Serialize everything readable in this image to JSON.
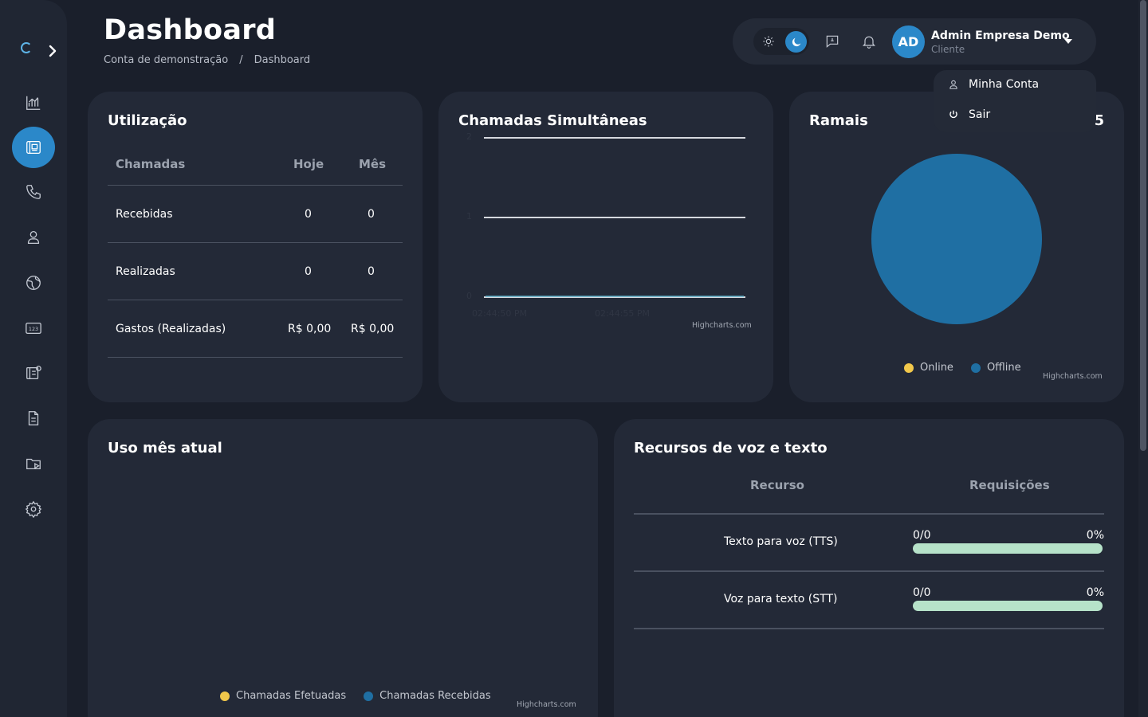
{
  "header": {
    "title": "Dashboard",
    "breadcrumb": [
      "Conta de demonstração",
      "/",
      "Dashboard"
    ]
  },
  "user": {
    "initials": "AD",
    "name": "Admin Empresa Demo",
    "role": "Cliente"
  },
  "user_menu": {
    "items": [
      {
        "label": "Minha Conta",
        "icon": "user-icon"
      },
      {
        "label": "Sair",
        "icon": "power-icon"
      }
    ]
  },
  "sidebar": {
    "items": [
      {
        "name": "chart",
        "icon": "bar-chart-icon",
        "active": false
      },
      {
        "name": "dashboard",
        "icon": "dashboard-icon",
        "active": true
      },
      {
        "name": "calls",
        "icon": "phone-icon",
        "active": false
      },
      {
        "name": "users",
        "icon": "user-icon",
        "active": false
      },
      {
        "name": "network",
        "icon": "globe-icon",
        "active": false
      },
      {
        "name": "numbers",
        "icon": "numbers-icon",
        "active": false
      },
      {
        "name": "extensions",
        "icon": "extensions-icon",
        "active": false
      },
      {
        "name": "reports",
        "icon": "document-icon",
        "active": false
      },
      {
        "name": "recordings",
        "icon": "folder-play-icon",
        "active": false
      },
      {
        "name": "settings",
        "icon": "gear-icon",
        "active": false
      }
    ]
  },
  "utilizacao": {
    "title": "Utilização",
    "headers": [
      "Chamadas",
      "Hoje",
      "Mês"
    ],
    "rows": [
      {
        "label": "Recebidas",
        "hoje": "0",
        "mes": "0"
      },
      {
        "label": "Realizadas",
        "hoje": "0",
        "mes": "0"
      },
      {
        "label": "Gastos (Realizadas)",
        "hoje": "R$ 0,00",
        "mes": "R$ 0,00"
      }
    ]
  },
  "chamadas": {
    "title": "Chamadas Simultâneas",
    "credits": "Highcharts.com"
  },
  "ramais": {
    "title": "Ramais",
    "count": "5",
    "credits": "Highcharts.com"
  },
  "uso": {
    "title": "Uso mês atual",
    "credits": "Highcharts.com"
  },
  "recursos": {
    "title": "Recursos de voz e texto",
    "headers": [
      "Recurso",
      "Requisições"
    ],
    "rows": [
      {
        "name": "Texto para voz (TTS)",
        "count": "0/0",
        "pct": "0%"
      },
      {
        "name": "Voz para texto (STT)",
        "count": "0/0",
        "pct": "0%"
      }
    ]
  },
  "colors": {
    "accent": "#2b88c9",
    "online": "#f2c84b",
    "offline": "#1f6fa3",
    "progress": "#b6e2c9"
  },
  "chart_data": [
    {
      "type": "line",
      "x": [
        "02:44:50 PM",
        "02:44:55 PM"
      ],
      "y_ticks": [
        "0",
        "1",
        "2"
      ],
      "ylim": [
        0,
        2
      ],
      "series": [
        {
          "values": [
            0,
            0
          ]
        }
      ]
    },
    {
      "type": "pie",
      "legend": [
        "Online",
        "Offline"
      ],
      "series": [
        {
          "values": [
            0,
            5
          ]
        }
      ]
    },
    {
      "type": "line",
      "legend": [
        "Chamadas Efetuadas",
        "Chamadas Recebidas"
      ],
      "series": [
        {
          "name": "Chamadas Efetuadas",
          "values": []
        },
        {
          "name": "Chamadas Recebidas",
          "values": []
        }
      ]
    }
  ]
}
